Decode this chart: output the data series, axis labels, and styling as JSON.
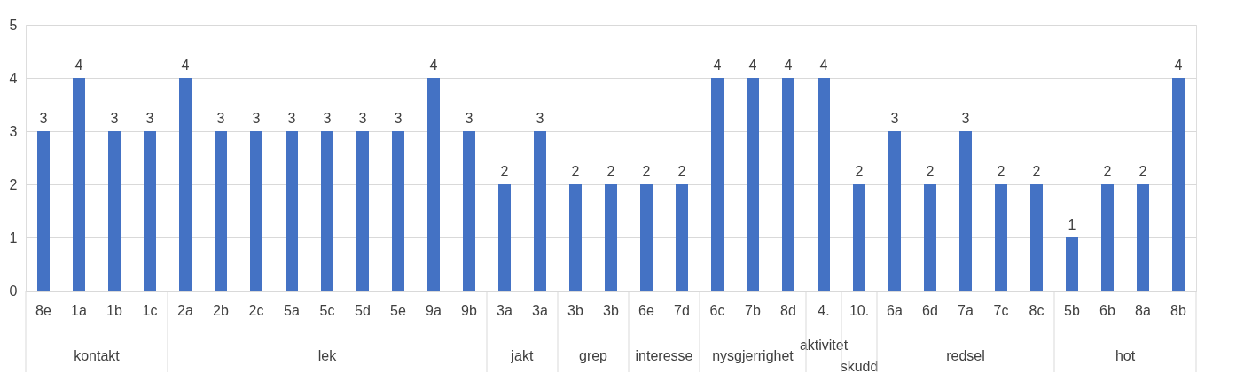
{
  "chart_data": {
    "type": "bar",
    "categories": [
      "8e",
      "1a",
      "1b",
      "1c",
      "2a",
      "2b",
      "2c",
      "5a",
      "5c",
      "5d",
      "5e",
      "9a",
      "9b",
      "3a",
      "3a",
      "3b",
      "3b",
      "6e",
      "7d",
      "6c",
      "7b",
      "8d",
      "4.",
      "10.",
      "6a",
      "6d",
      "7a",
      "7c",
      "8c",
      "5b",
      "6b",
      "8a",
      "8b"
    ],
    "values": [
      3,
      4,
      3,
      3,
      4,
      3,
      3,
      3,
      3,
      3,
      3,
      4,
      3,
      2,
      3,
      2,
      2,
      2,
      2,
      4,
      4,
      4,
      4,
      2,
      3,
      2,
      3,
      2,
      2,
      1,
      2,
      2,
      4
    ],
    "color": "#4472c4",
    "ylim": [
      0,
      5
    ],
    "yticks": [
      0,
      1,
      2,
      3,
      4,
      5
    ],
    "grid": "y",
    "data_labels": true,
    "annotations": [
      "kontakt",
      "lek",
      "jakt",
      "grep",
      "interesse",
      "nysgjerrighet",
      "aktivitet",
      "skudd",
      "redsel",
      "hot"
    ]
  }
}
